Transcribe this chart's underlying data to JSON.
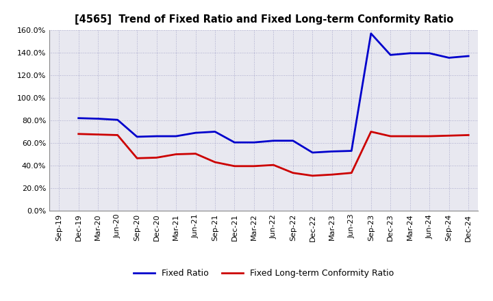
{
  "title": "[4565]  Trend of Fixed Ratio and Fixed Long-term Conformity Ratio",
  "x_labels": [
    "Sep-19",
    "Dec-19",
    "Mar-20",
    "Jun-20",
    "Sep-20",
    "Dec-20",
    "Mar-21",
    "Jun-21",
    "Sep-21",
    "Dec-21",
    "Mar-22",
    "Jun-22",
    "Sep-22",
    "Dec-22",
    "Mar-23",
    "Jun-23",
    "Sep-23",
    "Dec-23",
    "Mar-24",
    "Jun-24",
    "Sep-24",
    "Dec-24"
  ],
  "fixed_ratio": [
    null,
    82.0,
    81.5,
    80.5,
    65.5,
    66.0,
    66.0,
    69.0,
    70.0,
    60.5,
    60.5,
    62.0,
    62.0,
    51.5,
    52.5,
    53.0,
    157.0,
    138.0,
    139.5,
    139.5,
    135.5,
    137.0
  ],
  "fixed_lt_ratio": [
    null,
    68.0,
    67.5,
    67.0,
    46.5,
    47.0,
    50.0,
    50.5,
    43.0,
    39.5,
    39.5,
    40.5,
    33.5,
    31.0,
    32.0,
    33.5,
    70.0,
    66.0,
    66.0,
    66.0,
    66.5,
    67.0
  ],
  "fixed_ratio_color": "#0000CC",
  "fixed_lt_ratio_color": "#CC0000",
  "background_color": "#FFFFFF",
  "plot_bg_color": "#E8E8F0",
  "grid_color": "#AAAACC",
  "legend_fixed_ratio": "Fixed Ratio",
  "legend_fixed_lt_ratio": "Fixed Long-term Conformity Ratio",
  "line_width": 2.0,
  "yticks": [
    0,
    20,
    40,
    60,
    80,
    100,
    120,
    140,
    160
  ],
  "ylim_max": 160
}
